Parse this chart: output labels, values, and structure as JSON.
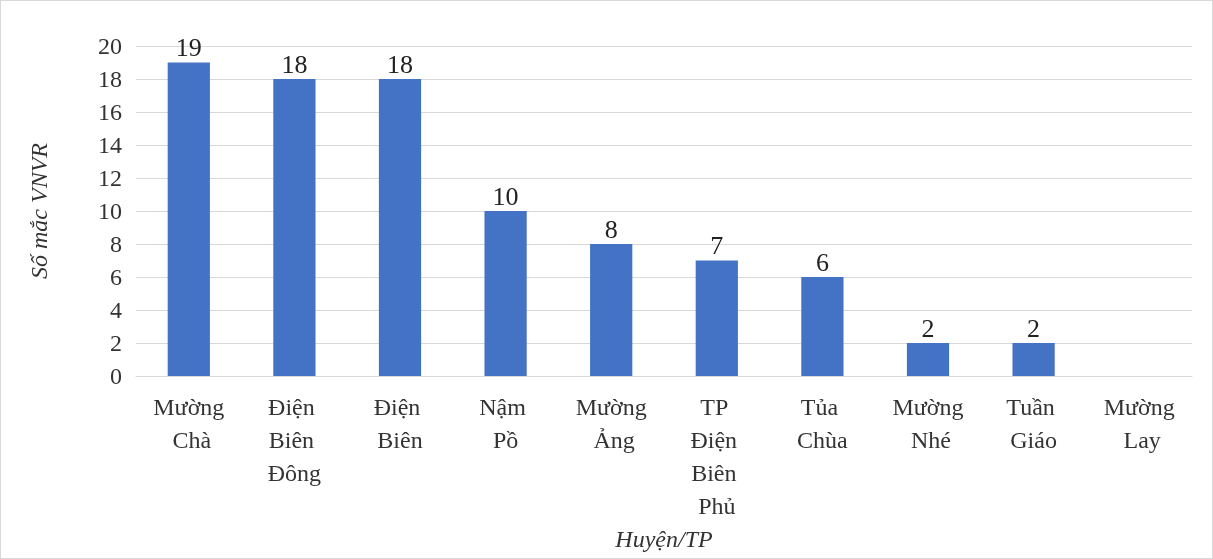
{
  "chart_data": {
    "type": "bar",
    "xlabel": "Huyện/TP",
    "ylabel": "Số mắc VNVR",
    "categories": [
      "Mường Chà",
      "Điện Biên Đông",
      "Điện Biên",
      "Nậm Pồ",
      "Mường Ảng",
      "TP Điện Biên Phủ",
      "Tủa Chùa",
      "Mường Nhé",
      "Tuần Giáo",
      "Mường Lay"
    ],
    "values": [
      19,
      18,
      18,
      10,
      8,
      7,
      6,
      2,
      2,
      0
    ],
    "value_labels": [
      "19",
      "18",
      "18",
      "10",
      "8",
      "7",
      "6",
      "2",
      "2",
      null
    ],
    "color": "#4472c4",
    "ylim": [
      0,
      20
    ],
    "yticks": [
      0,
      2,
      4,
      6,
      8,
      10,
      12,
      14,
      16,
      18,
      20
    ],
    "grid": "y"
  }
}
